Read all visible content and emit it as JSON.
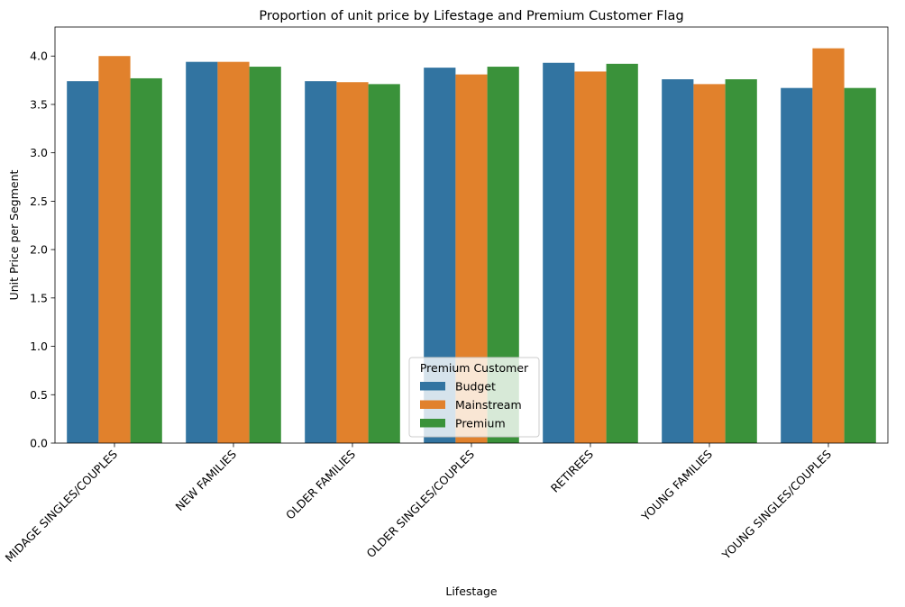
{
  "chart_data": {
    "type": "bar",
    "title": "Proportion of unit price by Lifestage and Premium Customer Flag",
    "xlabel": "Lifestage",
    "ylabel": "Unit Price per Segment",
    "ylim": [
      0,
      4.3
    ],
    "yticks": [
      "0.0",
      "0.5",
      "1.0",
      "1.5",
      "2.0",
      "2.5",
      "3.0",
      "3.5",
      "4.0"
    ],
    "categories": [
      "MIDAGE SINGLES/COUPLES",
      "NEW FAMILIES",
      "OLDER FAMILIES",
      "OLDER SINGLES/COUPLES",
      "RETIREES",
      "YOUNG FAMILIES",
      "YOUNG SINGLES/COUPLES"
    ],
    "series": [
      {
        "name": "Budget",
        "color": "#3274a1",
        "values": [
          3.74,
          3.94,
          3.74,
          3.88,
          3.93,
          3.76,
          3.67
        ]
      },
      {
        "name": "Mainstream",
        "color": "#e1812c",
        "values": [
          4.0,
          3.94,
          3.73,
          3.81,
          3.84,
          3.71,
          4.08
        ]
      },
      {
        "name": "Premium",
        "color": "#3a923a",
        "values": [
          3.77,
          3.89,
          3.71,
          3.89,
          3.92,
          3.76,
          3.67
        ]
      }
    ],
    "legend": {
      "title": "Premium Customer",
      "placement": "lower-center"
    },
    "grid": false
  }
}
